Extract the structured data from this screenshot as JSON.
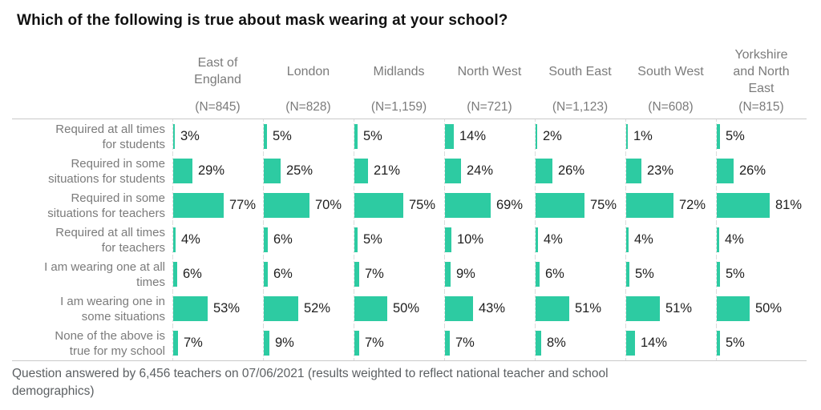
{
  "title": "Which of the following is true about mask wearing at your school?",
  "footnote": "Question answered by 6,456 teachers on 07/06/2021 (results weighted to reflect national teacher and school\ndemographics)",
  "colors": {
    "bar": "#2dcba2",
    "header_gray": "#7b7b7b",
    "value_text": "#1f1f1f",
    "rule_line": "#c9c9c9",
    "column_dash": "#dcdcdc",
    "footnote_gray": "#5c6063"
  },
  "chart_data": {
    "type": "bar",
    "orientation": "horizontal",
    "unit": "%",
    "xlim": [
      0,
      100
    ],
    "grid": "dashed-column-baselines",
    "legend": "none",
    "title": "Which of the following is true about mask wearing at your school?",
    "columns": [
      {
        "label": "East of\nEngland",
        "n": "(N=845)"
      },
      {
        "label": "London",
        "n": "(N=828)"
      },
      {
        "label": "Midlands",
        "n": "(N=1,159)"
      },
      {
        "label": "North West",
        "n": "(N=721)"
      },
      {
        "label": "South East",
        "n": "(N=1,123)"
      },
      {
        "label": "South West",
        "n": "(N=608)"
      },
      {
        "label": "Yorkshire\nand North\nEast",
        "n": "(N=815)"
      }
    ],
    "rows": [
      {
        "label": "Required at all times\nfor students",
        "values": [
          3,
          5,
          5,
          14,
          2,
          1,
          5
        ]
      },
      {
        "label": "Required in some\nsituations for students",
        "values": [
          29,
          25,
          21,
          24,
          26,
          23,
          26
        ]
      },
      {
        "label": "Required in some\nsituations for teachers",
        "values": [
          77,
          70,
          75,
          69,
          75,
          72,
          81
        ]
      },
      {
        "label": "Required at all times\nfor teachers",
        "values": [
          4,
          6,
          5,
          10,
          4,
          4,
          4
        ]
      },
      {
        "label": "I am wearing one at all\ntimes",
        "values": [
          6,
          6,
          7,
          9,
          6,
          5,
          5
        ]
      },
      {
        "label": "I am wearing one in\nsome situations",
        "values": [
          53,
          52,
          50,
          43,
          51,
          51,
          50
        ]
      },
      {
        "label": "None of the above is\ntrue for my school",
        "values": [
          7,
          9,
          7,
          7,
          8,
          14,
          5
        ]
      }
    ]
  }
}
